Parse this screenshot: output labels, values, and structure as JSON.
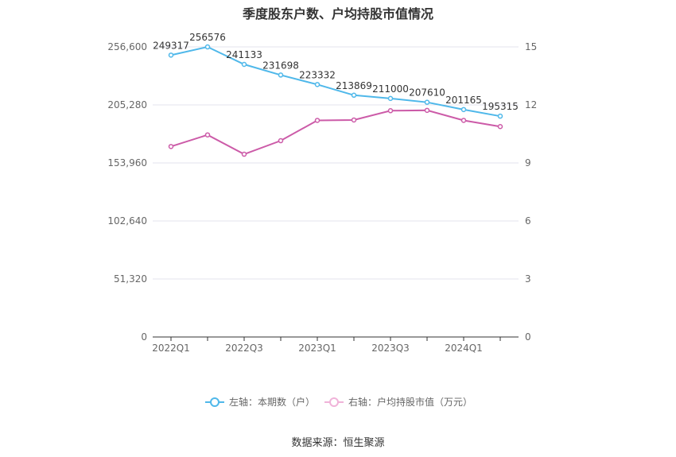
{
  "title": "季度股东户数、户均持股市值情况",
  "source": "数据来源：恒生聚源",
  "chart_data": {
    "type": "line",
    "x": [
      "2022Q1",
      "2022Q2",
      "2022Q3",
      "2022Q4",
      "2023Q1",
      "2023Q2",
      "2023Q3",
      "2023Q4",
      "2024Q1",
      "2024Q2"
    ],
    "x_tick_labels": [
      "2022Q1",
      "2022Q3",
      "2023Q1",
      "2023Q3",
      "2024Q1"
    ],
    "left_axis": {
      "ylim": [
        0,
        256600
      ],
      "ticks": [
        "0",
        "51,320",
        "102,640",
        "153,960",
        "205,280",
        "256,600"
      ],
      "tick_values": [
        0,
        51320,
        102640,
        153960,
        205280,
        256600
      ]
    },
    "right_axis": {
      "ylim": [
        0,
        15
      ],
      "ticks": [
        "0",
        "3",
        "6",
        "9",
        "12",
        "15"
      ],
      "tick_values": [
        0,
        3,
        6,
        9,
        12,
        15
      ]
    },
    "series": [
      {
        "name": "左轴：本期数（户）",
        "axis": "left",
        "color": "#4fb8ea",
        "values": [
          249317,
          256576,
          241133,
          231698,
          223332,
          213869,
          211000,
          207610,
          201165,
          195315
        ],
        "labels": [
          "249317",
          "256576",
          "241133",
          "231698",
          "223332",
          "213869",
          "211000",
          "207610",
          "201165",
          "195315"
        ]
      },
      {
        "name": "右轴：户均持股市值（万元）",
        "axis": "right",
        "color": "#cc5ba8",
        "values": [
          9.85,
          10.45,
          9.45,
          10.15,
          11.2,
          11.22,
          11.7,
          11.72,
          11.2,
          10.88
        ]
      }
    ],
    "legend_position": "bottom"
  }
}
